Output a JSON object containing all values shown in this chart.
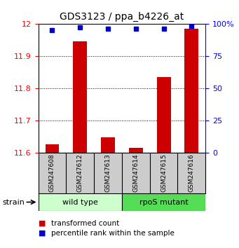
{
  "title": "GDS3123 / ppa_b4226_at",
  "samples": [
    "GSM247608",
    "GSM247612",
    "GSM247613",
    "GSM247614",
    "GSM247615",
    "GSM247616"
  ],
  "transformed_counts": [
    11.625,
    11.945,
    11.648,
    11.615,
    11.835,
    11.985
  ],
  "percentile_ranks": [
    95,
    97,
    96,
    96,
    96,
    98
  ],
  "groups": [
    {
      "label": "wild type",
      "color": "#ccffcc",
      "start": 0,
      "end": 2
    },
    {
      "label": "rpoS mutant",
      "color": "#55dd55",
      "start": 3,
      "end": 5
    }
  ],
  "ylim_left": [
    11.6,
    12.0
  ],
  "ylim_right": [
    0,
    100
  ],
  "yticks_left": [
    11.6,
    11.7,
    11.8,
    11.9,
    12.0
  ],
  "ytick_labels_left": [
    "11.6",
    "11.7",
    "11.8",
    "11.9",
    "12"
  ],
  "yticks_right": [
    0,
    25,
    50,
    75,
    100
  ],
  "ytick_labels_right": [
    "0",
    "25",
    "50",
    "75",
    "100%"
  ],
  "bar_color": "#cc0000",
  "dot_color": "#0000cc",
  "bar_width": 0.5,
  "background_color": "#ffffff",
  "plot_bg_color": "#ffffff",
  "legend_red_label": "transformed count",
  "legend_blue_label": "percentile rank within the sample",
  "strain_label": "strain",
  "sample_box_color": "#cccccc",
  "gridline_ticks": [
    11.7,
    11.8,
    11.9
  ]
}
